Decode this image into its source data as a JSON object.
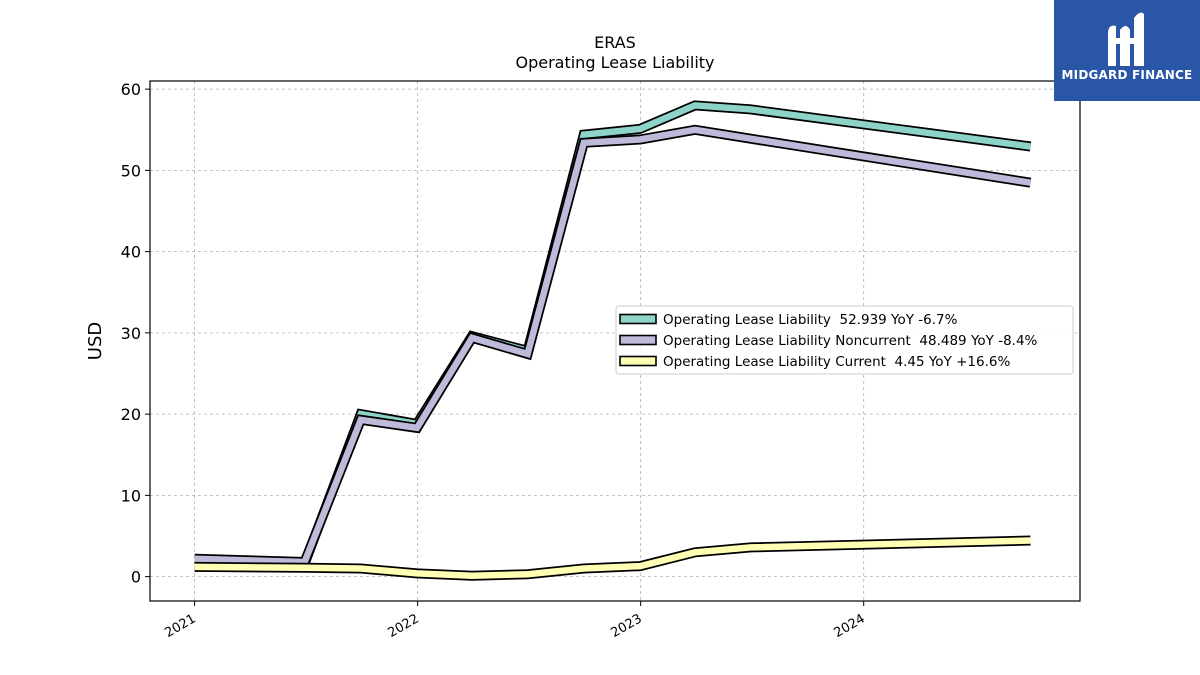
{
  "chart_data": {
    "type": "line",
    "title": "ERAS",
    "subtitle": "Operating Lease Liability",
    "ylabel": "USD",
    "xlabel": "",
    "ylim": [
      -3,
      61
    ],
    "xlim": [
      "2020-10-20",
      "2024-12-20"
    ],
    "yticks": [
      0,
      10,
      20,
      30,
      40,
      50,
      60
    ],
    "xticks": [
      {
        "date": "2021-01-01",
        "label": "2021"
      },
      {
        "date": "2022-01-01",
        "label": "2022"
      },
      {
        "date": "2023-01-01",
        "label": "2023"
      },
      {
        "date": "2024-01-01",
        "label": "2024"
      }
    ],
    "grid": true,
    "legend_position": "center-right",
    "series": [
      {
        "name": "Operating Lease Liability",
        "legend_label": "Operating Lease Liability  52.939 YoY -6.7%",
        "color": "#8dd3c7",
        "points": [
          [
            "2021-01-01",
            2.0
          ],
          [
            "2021-06-30",
            1.6
          ],
          [
            "2021-09-30",
            20.0
          ],
          [
            "2021-12-31",
            18.8
          ],
          [
            "2022-03-31",
            29.6
          ],
          [
            "2022-06-30",
            27.8
          ],
          [
            "2022-09-30",
            54.4
          ],
          [
            "2022-12-31",
            55.1
          ],
          [
            "2023-03-31",
            58.0
          ],
          [
            "2023-06-30",
            57.5
          ],
          [
            "2024-09-30",
            52.939
          ]
        ]
      },
      {
        "name": "Operating Lease Liability Noncurrent",
        "legend_label": "Operating Lease Liability Noncurrent  48.489 YoY -8.4%",
        "color": "#bebada",
        "points": [
          [
            "2021-01-01",
            2.2
          ],
          [
            "2021-06-30",
            1.8
          ],
          [
            "2021-09-30",
            19.3
          ],
          [
            "2021-12-31",
            18.3
          ],
          [
            "2022-03-31",
            29.4
          ],
          [
            "2022-06-30",
            27.4
          ],
          [
            "2022-09-30",
            53.4
          ],
          [
            "2022-12-31",
            53.8
          ],
          [
            "2023-03-31",
            55.0
          ],
          [
            "2023-06-30",
            53.9
          ],
          [
            "2024-09-30",
            48.489
          ]
        ]
      },
      {
        "name": "Operating Lease Liability Current",
        "legend_label": "Operating Lease Liability Current  4.45 YoY +16.6%",
        "color": "#ffffb3",
        "points": [
          [
            "2021-01-01",
            1.2
          ],
          [
            "2021-06-30",
            1.1
          ],
          [
            "2021-09-30",
            1.0
          ],
          [
            "2021-12-31",
            0.4
          ],
          [
            "2022-03-31",
            0.1
          ],
          [
            "2022-06-30",
            0.3
          ],
          [
            "2022-09-30",
            1.0
          ],
          [
            "2022-12-31",
            1.3
          ],
          [
            "2023-03-31",
            3.0
          ],
          [
            "2023-06-30",
            3.6
          ],
          [
            "2024-09-30",
            4.45
          ]
        ]
      }
    ]
  },
  "logo": {
    "text": "MIDGARD FINANCE",
    "background": "#2a56a8"
  }
}
